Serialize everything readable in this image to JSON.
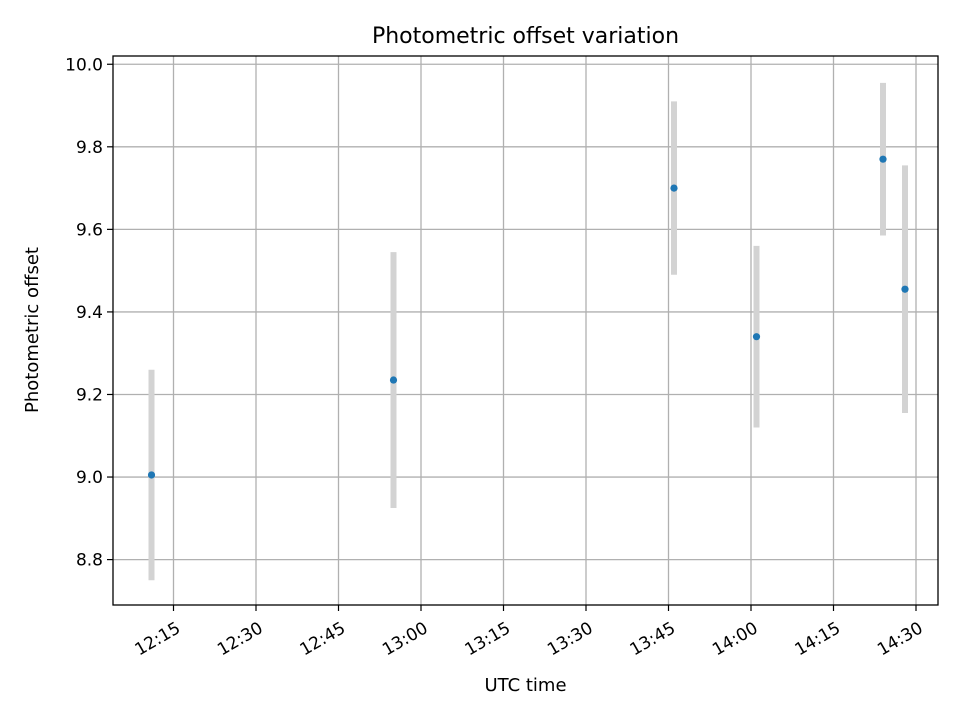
{
  "chart_data": {
    "type": "scatter",
    "title": "Photometric offset variation",
    "xlabel": "UTC time",
    "ylabel": "Photometric offset",
    "x_ticks": [
      "12:15",
      "12:30",
      "12:45",
      "13:00",
      "13:15",
      "13:30",
      "13:45",
      "14:00",
      "14:15",
      "14:30"
    ],
    "y_ticks": [
      "8.8",
      "9.0",
      "9.2",
      "9.4",
      "9.6",
      "9.8",
      "10.0"
    ],
    "xlim": [
      "12:04",
      "14:34"
    ],
    "ylim": [
      8.69,
      10.02
    ],
    "grid": true,
    "errorbar_color": "#d3d3d3",
    "marker_color": "#1f77b4",
    "points": [
      {
        "x": "12:11",
        "y": 9.005,
        "yerr": 0.255
      },
      {
        "x": "12:55",
        "y": 9.235,
        "yerr": 0.31
      },
      {
        "x": "13:46",
        "y": 9.7,
        "yerr": 0.21
      },
      {
        "x": "14:01",
        "y": 9.34,
        "yerr": 0.22
      },
      {
        "x": "14:24",
        "y": 9.77,
        "yerr": 0.185
      },
      {
        "x": "14:28",
        "y": 9.455,
        "yerr": 0.3
      }
    ]
  }
}
